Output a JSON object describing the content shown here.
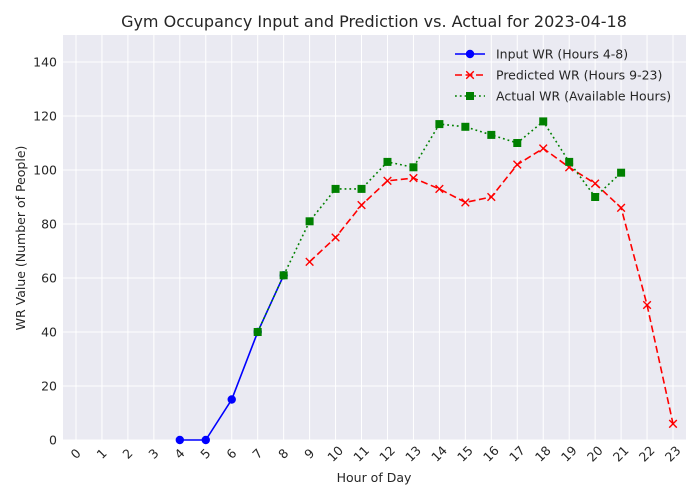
{
  "chart_data": {
    "type": "line",
    "title": "Gym Occupancy Input and Prediction vs. Actual for 2023-04-18",
    "xlabel": "Hour of Day",
    "ylabel": "WR Value (Number of People)",
    "xlim": [
      -0.5,
      23.5
    ],
    "ylim": [
      0,
      150
    ],
    "xticks": [
      "0",
      "1",
      "2",
      "3",
      "4",
      "5",
      "6",
      "7",
      "8",
      "9",
      "10",
      "11",
      "12",
      "13",
      "14",
      "15",
      "16",
      "17",
      "18",
      "19",
      "20",
      "21",
      "22",
      "23"
    ],
    "yticks": [
      "0",
      "20",
      "40",
      "60",
      "80",
      "100",
      "120",
      "140"
    ],
    "grid": true,
    "legend_position": "top-right",
    "series": [
      {
        "name": "Input WR (Hours 4-8)",
        "color": "#0000ff",
        "line_style": "solid",
        "marker": "circle",
        "x": [
          4,
          5,
          6,
          7,
          8
        ],
        "y": [
          0,
          0,
          15,
          40,
          61
        ]
      },
      {
        "name": "Predicted WR (Hours 9-23)",
        "color": "#ff0000",
        "line_style": "dashed",
        "marker": "x",
        "x": [
          9,
          10,
          11,
          12,
          13,
          14,
          15,
          16,
          17,
          18,
          19,
          20,
          21,
          22,
          23
        ],
        "y": [
          66,
          75,
          87,
          96,
          97,
          93,
          88,
          90,
          102,
          108,
          101,
          95,
          86,
          50,
          6
        ]
      },
      {
        "name": "Actual WR (Available Hours)",
        "color": "#008000",
        "line_style": "dotted",
        "marker": "square",
        "x": [
          7,
          8,
          9,
          10,
          11,
          12,
          13,
          14,
          15,
          16,
          17,
          18,
          19,
          20,
          21
        ],
        "y": [
          40,
          61,
          81,
          93,
          93,
          103,
          101,
          117,
          116,
          113,
          110,
          118,
          103,
          90,
          99
        ]
      }
    ]
  }
}
